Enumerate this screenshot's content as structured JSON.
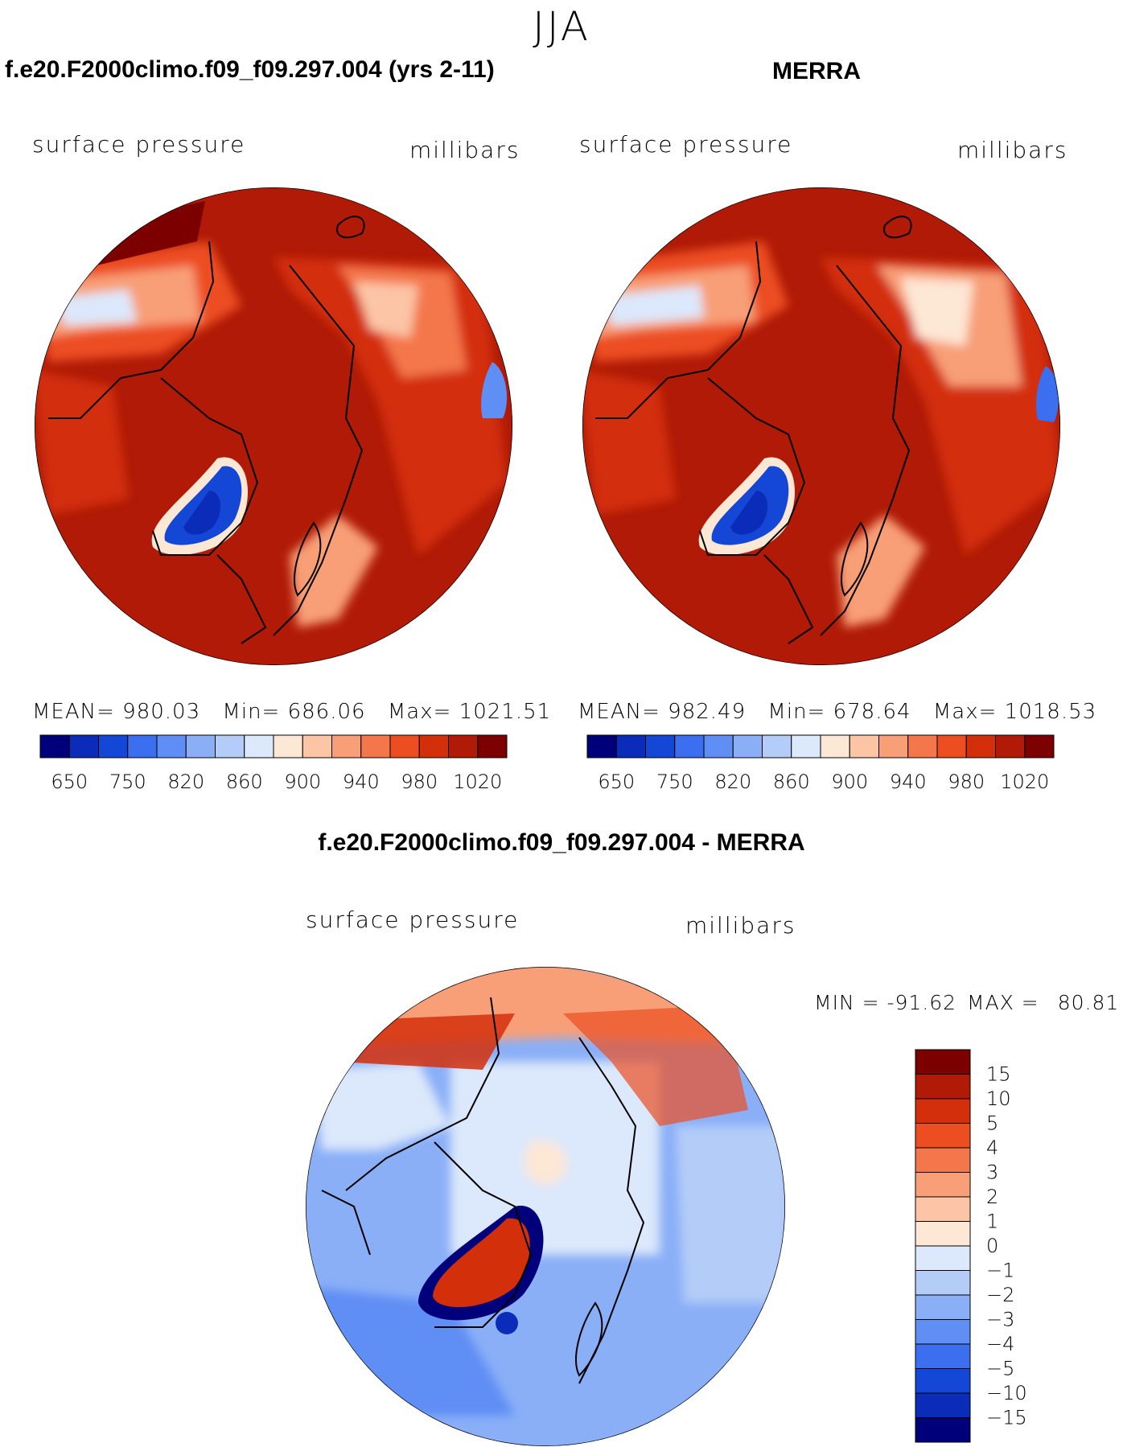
{
  "season": "JJA",
  "panels": [
    {
      "title": "f.e20.F2000climo.f09_f09.297.004 (yrs 2-11)",
      "variable": "surface pressure",
      "units": "millibars",
      "mean_label": "MEAN=",
      "mean": "980.03",
      "min_label": "Min=",
      "min": "686.06",
      "max_label": "Max=",
      "max": "1021.51"
    },
    {
      "title": "MERRA",
      "variable": "surface pressure",
      "units": "millibars",
      "mean_label": "MEAN=",
      "mean": "982.49",
      "min_label": "Min=",
      "min": "678.64",
      "max_label": "Max=",
      "max": "1018.53"
    }
  ],
  "abs_colorbar": {
    "colors": [
      "#00007a",
      "#0a2cb8",
      "#1447d6",
      "#3b6ff0",
      "#5f8ef4",
      "#8aaff7",
      "#b4ccf8",
      "#dce8fb",
      "#fde7d5",
      "#fcc5a6",
      "#f89f77",
      "#f4774c",
      "#ec4e22",
      "#d32f0b",
      "#b01a06",
      "#7c0000"
    ],
    "labels": [
      "650",
      "750",
      "820",
      "860",
      "900",
      "940",
      "980",
      "1020"
    ]
  },
  "diff_panel": {
    "title": "f.e20.F2000climo.f09_f09.297.004 - MERRA",
    "variable": "surface pressure",
    "units": "millibars",
    "min_label": "MIN =",
    "min": "-91.62",
    "max_label": "MAX =",
    "max": "80.81"
  },
  "diff_colorbar": {
    "colors": [
      "#7c0000",
      "#b01a06",
      "#d32f0b",
      "#ec4e22",
      "#f4774c",
      "#f89f77",
      "#fcc5a6",
      "#fde7d5",
      "#dce8fb",
      "#b4ccf8",
      "#8aaff7",
      "#5f8ef4",
      "#3b6ff0",
      "#1447d6",
      "#0a2cb8",
      "#00007a"
    ],
    "labels": [
      "15",
      "10",
      "5",
      "4",
      "3",
      "2",
      "1",
      "0",
      "−1",
      "−2",
      "−3",
      "−4",
      "−5",
      "−10",
      "−15"
    ]
  }
}
